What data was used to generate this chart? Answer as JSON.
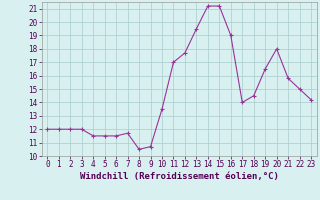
{
  "x": [
    0,
    1,
    2,
    3,
    4,
    5,
    6,
    7,
    8,
    9,
    10,
    11,
    12,
    13,
    14,
    15,
    16,
    17,
    18,
    19,
    20,
    21,
    22,
    23
  ],
  "y": [
    12,
    12,
    12,
    12,
    11.5,
    11.5,
    11.5,
    11.7,
    10.5,
    10.7,
    13.5,
    17,
    17.7,
    19.5,
    21.2,
    21.2,
    19,
    14,
    14.5,
    16.5,
    18,
    15.8,
    15,
    14.2
  ],
  "line_color": "#993399",
  "marker": "+",
  "marker_size": 3,
  "line_width": 0.8,
  "bg_color": "#d8f0f0",
  "grid_color": "#aacccc",
  "xlabel": "Windchill (Refroidissement éolien,°C)",
  "xlim": [
    -0.5,
    23.5
  ],
  "ylim": [
    10,
    21.5
  ],
  "yticks": [
    10,
    11,
    12,
    13,
    14,
    15,
    16,
    17,
    18,
    19,
    20,
    21
  ],
  "xticks": [
    0,
    1,
    2,
    3,
    4,
    5,
    6,
    7,
    8,
    9,
    10,
    11,
    12,
    13,
    14,
    15,
    16,
    17,
    18,
    19,
    20,
    21,
    22,
    23
  ],
  "tick_fontsize": 5.5,
  "xlabel_fontsize": 6.5
}
